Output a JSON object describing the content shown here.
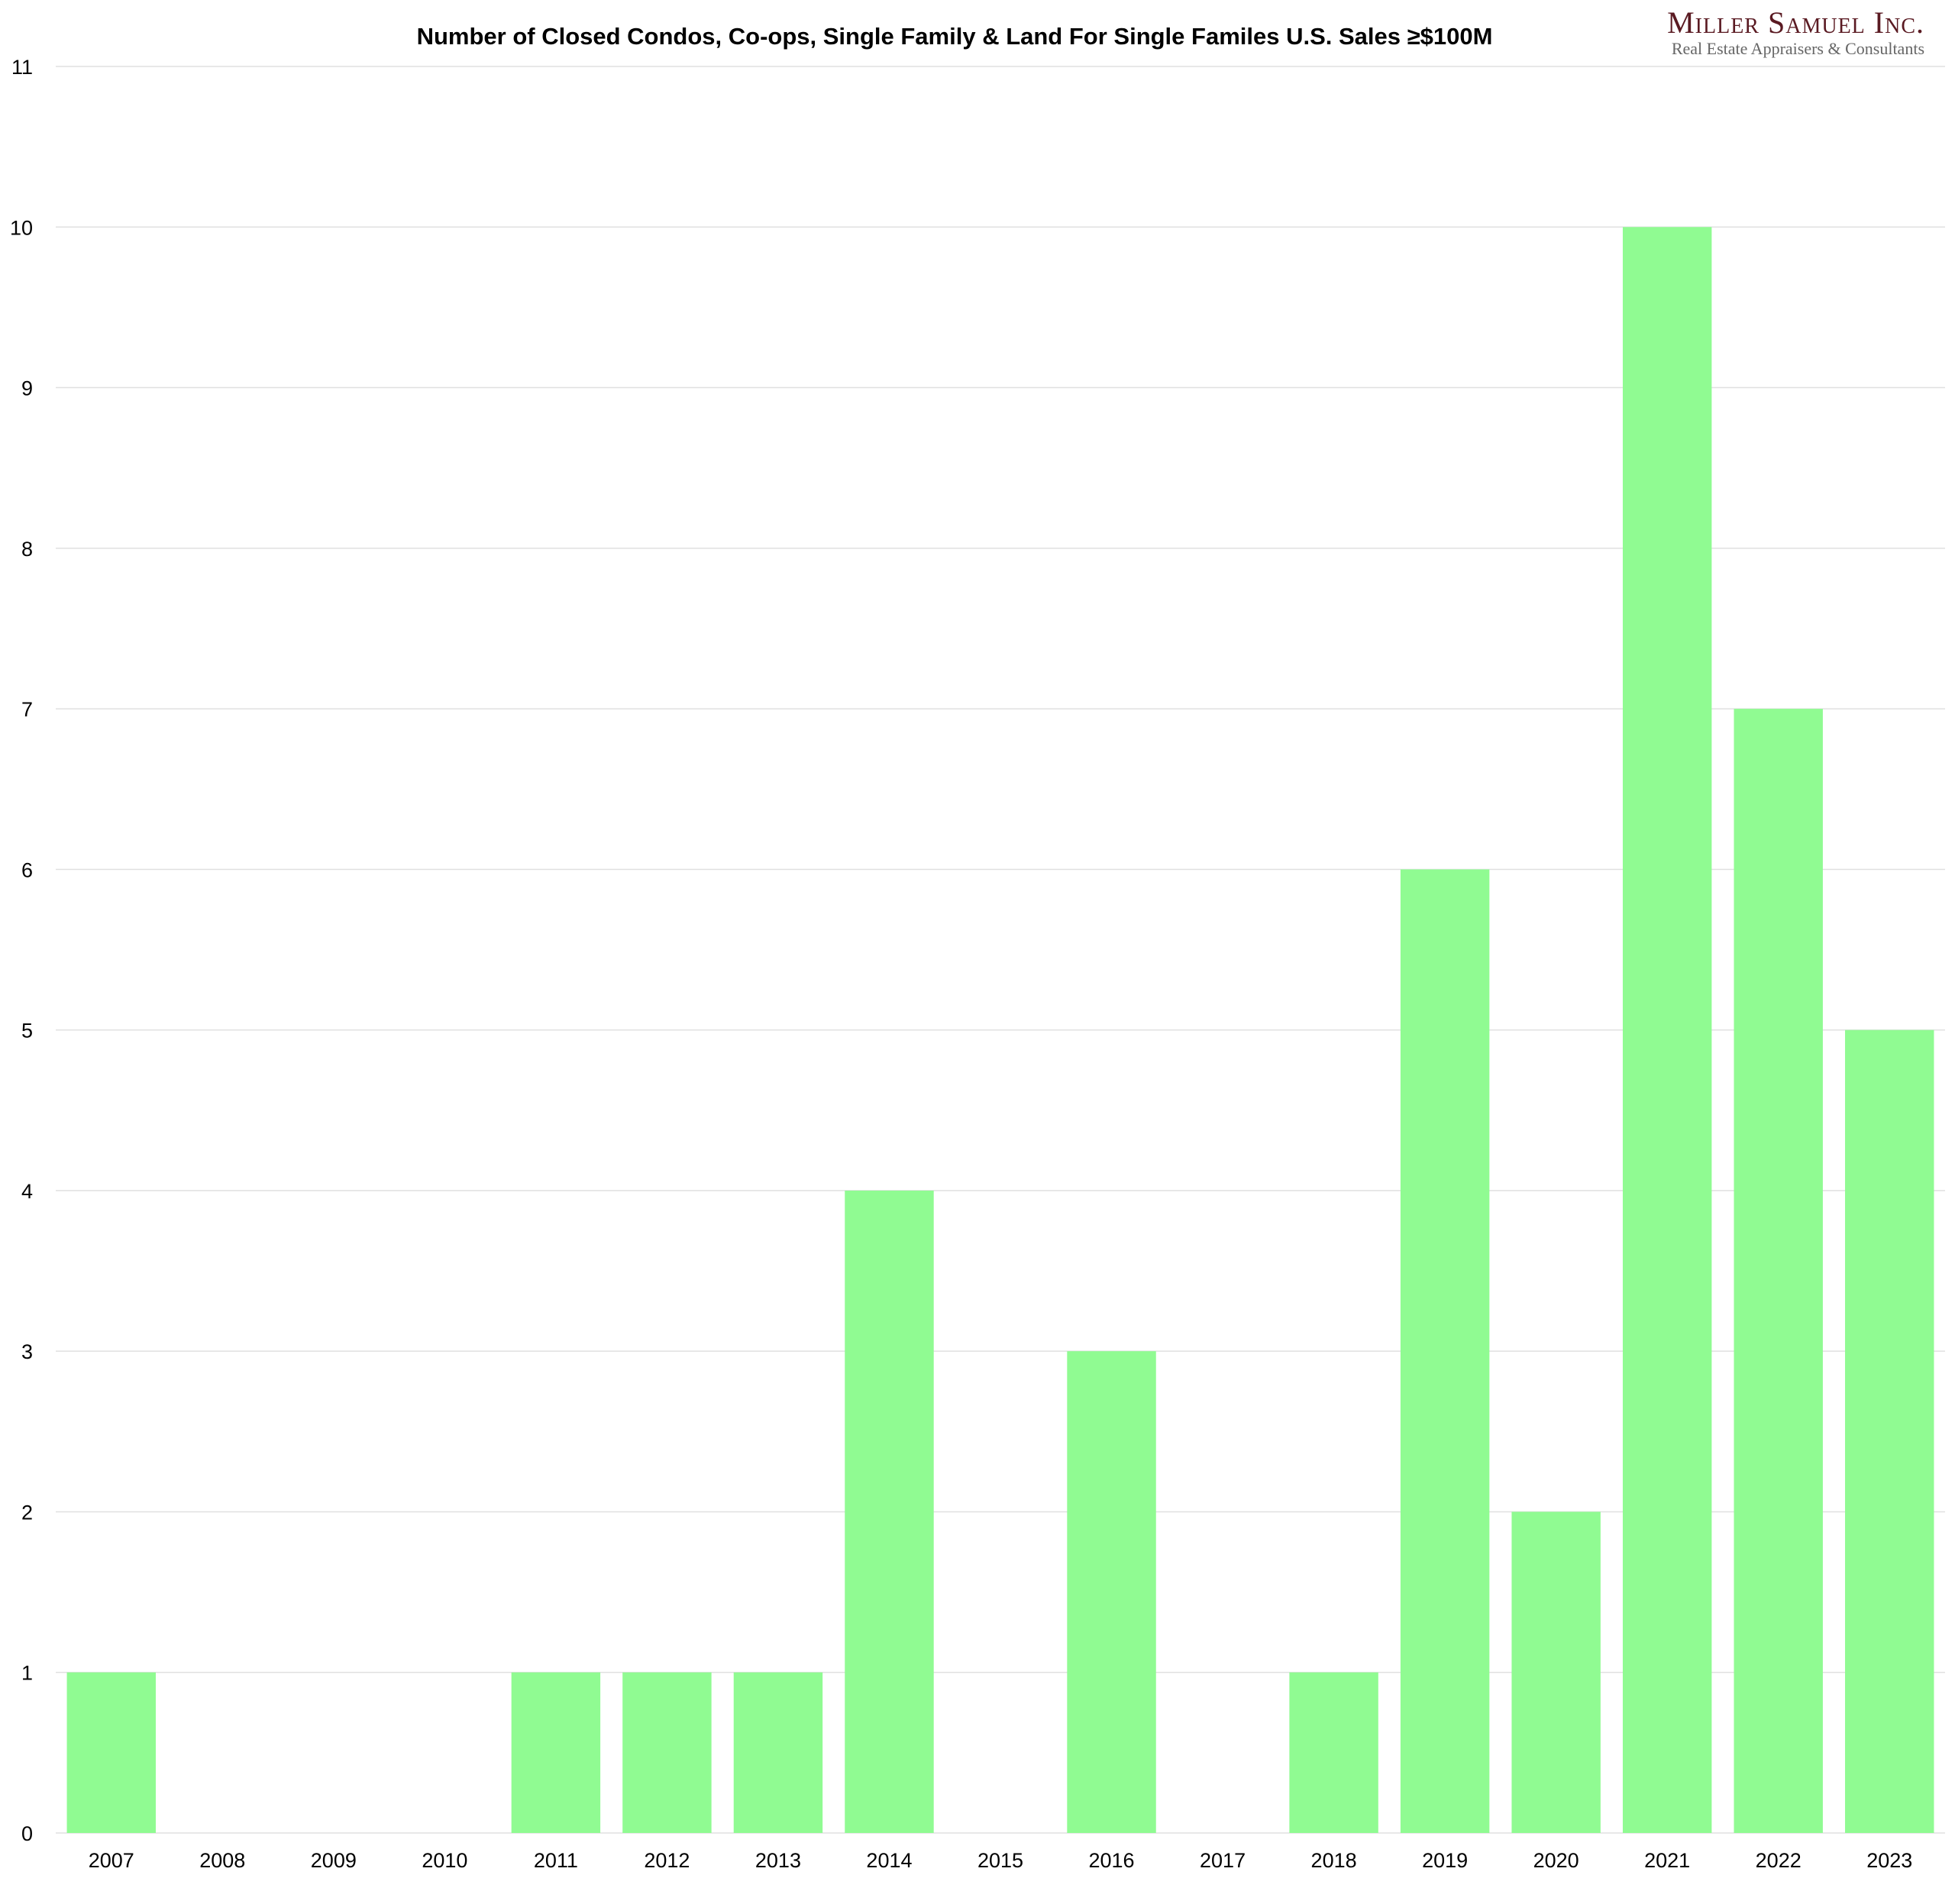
{
  "logo": {
    "name": "Miller Samuel Inc.",
    "tagline": "Real Estate Appraisers & Consultants"
  },
  "chart_data": {
    "type": "bar",
    "title": "Number of Closed Condos, Co-ops, Single Family & Land For Single Familes U.S. Sales ≥$100M",
    "xlabel": "",
    "ylabel": "",
    "categories": [
      "2007",
      "2008",
      "2009",
      "2010",
      "2011",
      "2012",
      "2013",
      "2014",
      "2015",
      "2016",
      "2017",
      "2018",
      "2019",
      "2020",
      "2021",
      "2022",
      "2023"
    ],
    "values": [
      1,
      0,
      0,
      0,
      1,
      1,
      1,
      4,
      0,
      3,
      0,
      1,
      6,
      2,
      10,
      7,
      5
    ],
    "ylim": [
      0,
      11
    ],
    "yticks": [
      "0",
      "1",
      "2",
      "3",
      "4",
      "5",
      "6",
      "7",
      "8",
      "9",
      "10",
      "11"
    ],
    "grid": true,
    "bar_color": "#90FB92"
  }
}
